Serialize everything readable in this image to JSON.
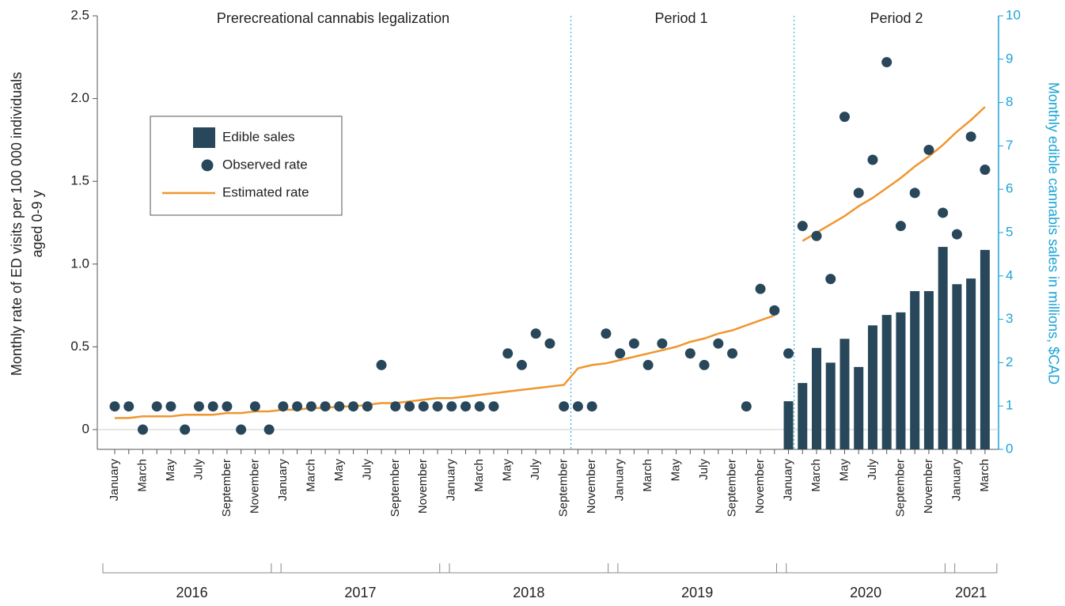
{
  "chart_data": {
    "type": "bar",
    "ylabel": [
      "Monthly rate of ED visits per 100 000 individuals",
      "aged 0-9 y"
    ],
    "y2label": "Monthly edible cannabis sales in millions, $CAD",
    "periods": [
      "Prerecreational cannabis legalization",
      "Period 1",
      "Period 2"
    ],
    "years": [
      "2016",
      "2017",
      "2018",
      "2019",
      "2020",
      "2021"
    ],
    "categories": [
      "January",
      null,
      "March",
      null,
      "May",
      null,
      "July",
      null,
      "September",
      null,
      "November",
      null,
      "January",
      null,
      "March",
      null,
      "May",
      null,
      "July",
      null,
      "September",
      null,
      "November",
      null,
      "January",
      null,
      "March",
      null,
      "May",
      null,
      "July",
      null,
      "September",
      null,
      "November",
      null,
      "January",
      null,
      "March",
      null,
      "May",
      null,
      "July",
      null,
      "September",
      null,
      "November",
      null,
      "January",
      null,
      "March",
      null,
      "May",
      null,
      "July",
      null,
      "September",
      null,
      "November",
      null,
      "January",
      null,
      "March"
    ],
    "series": [
      {
        "name": "Edible sales",
        "type": "bar",
        "axis": "y2",
        "color": "#28475a",
        "values": [
          null,
          null,
          null,
          null,
          null,
          null,
          null,
          null,
          null,
          null,
          null,
          null,
          null,
          null,
          null,
          null,
          null,
          null,
          null,
          null,
          null,
          null,
          null,
          null,
          null,
          null,
          null,
          null,
          null,
          null,
          null,
          null,
          null,
          null,
          null,
          null,
          null,
          null,
          null,
          null,
          null,
          null,
          null,
          null,
          null,
          null,
          null,
          null,
          1.11,
          1.53,
          2.34,
          2.0,
          2.55,
          1.9,
          2.86,
          3.1,
          3.16,
          3.65,
          3.65,
          4.67,
          3.81,
          3.94,
          4.6
        ]
      },
      {
        "name": "Observed rate",
        "type": "scatter",
        "color": "#28475a",
        "values": [
          0.14,
          0.14,
          0,
          0.14,
          0.14,
          0,
          0.14,
          0.14,
          0.14,
          0,
          0.14,
          0,
          0.14,
          0.14,
          0.14,
          0.14,
          0.14,
          0.14,
          0.14,
          0.39,
          0.14,
          0.14,
          0.14,
          0.14,
          0.14,
          0.14,
          0.14,
          0.14,
          0.46,
          0.39,
          0.58,
          0.52,
          0.14,
          0.14,
          0.14,
          0.58,
          0.46,
          0.52,
          0.39,
          0.52,
          null,
          0.46,
          0.39,
          0.52,
          0.46,
          0.14,
          0.85,
          0.72,
          0.46,
          1.23,
          1.17,
          0.91,
          1.89,
          1.43,
          1.63,
          2.22,
          1.23,
          1.43,
          1.69,
          1.31,
          1.18,
          1.77,
          1.57
        ]
      },
      {
        "name": "Estimated rate",
        "type": "line",
        "color": "#f0962e",
        "values": [
          0.07,
          0.07,
          0.08,
          0.08,
          0.08,
          0.09,
          0.09,
          0.09,
          0.1,
          0.1,
          0.11,
          0.11,
          0.12,
          0.12,
          0.13,
          0.13,
          0.14,
          0.14,
          0.15,
          0.16,
          0.16,
          0.17,
          0.18,
          0.19,
          0.19,
          0.2,
          0.21,
          0.22,
          0.23,
          0.24,
          0.25,
          0.26,
          0.27,
          0.37,
          0.39,
          0.4,
          0.42,
          0.44,
          0.46,
          0.48,
          0.5,
          0.53,
          0.55,
          0.58,
          0.6,
          0.63,
          0.66,
          0.69,
          null,
          1.14,
          1.19,
          1.24,
          1.29,
          1.35,
          1.4,
          1.46,
          1.52,
          1.59,
          1.65,
          1.72,
          1.8,
          1.87,
          1.95
        ]
      }
    ],
    "ylim": [
      0,
      2.5
    ],
    "yticks": [
      0,
      0.5,
      {
        "value": 1,
        "label": "1.0"
      },
      1.5,
      {
        "value": 2,
        "label": "2.0"
      },
      2.5
    ],
    "y2lim": [
      0,
      10
    ],
    "y2ticks": [
      0,
      1,
      2,
      3,
      4,
      5,
      6,
      7,
      8,
      9,
      10
    ],
    "y2color": "#1ba3d6",
    "legend": "upper left"
  }
}
